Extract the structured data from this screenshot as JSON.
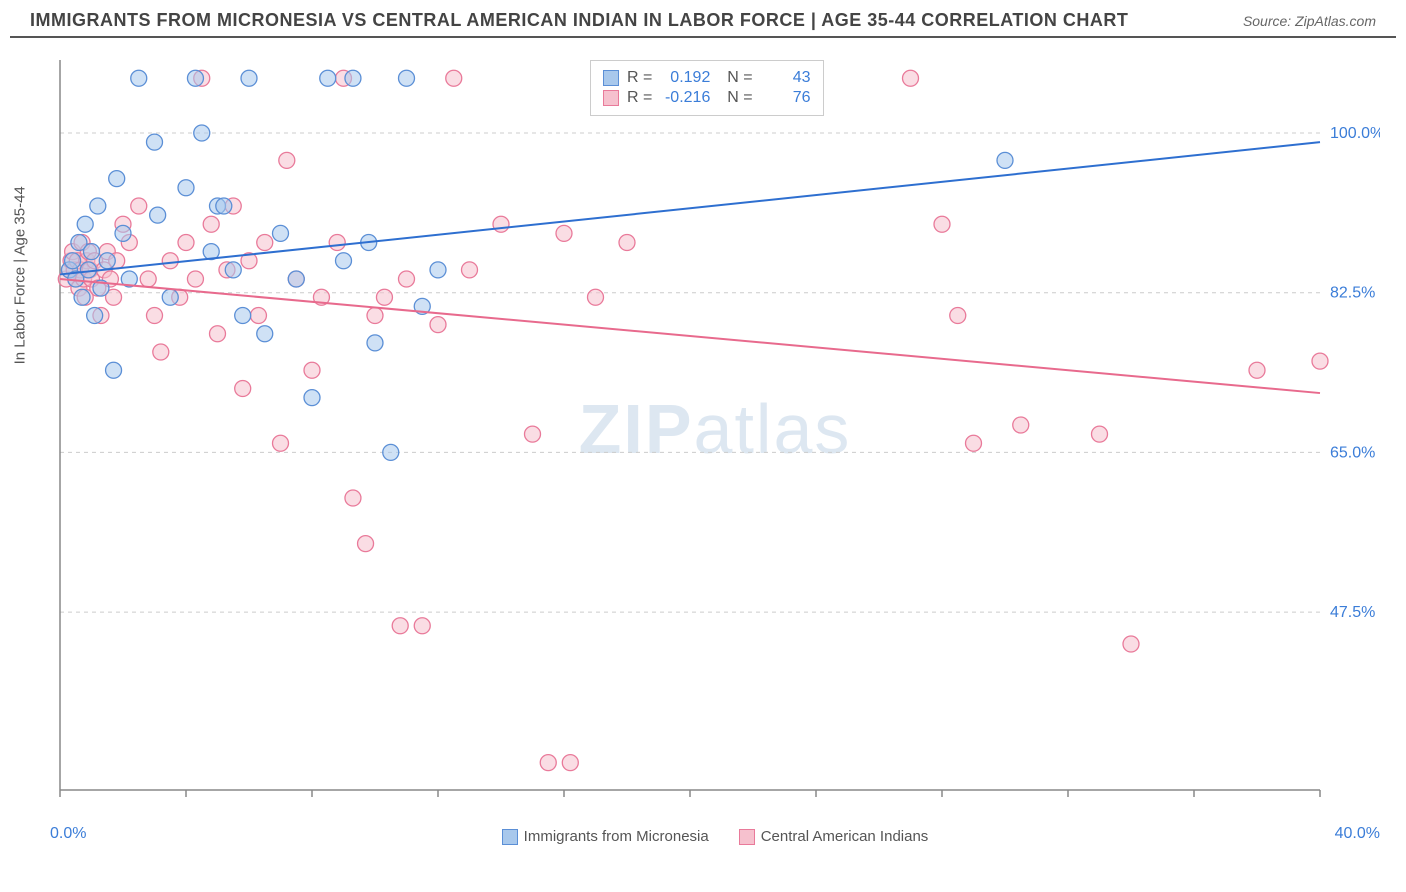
{
  "title": "IMMIGRANTS FROM MICRONESIA VS CENTRAL AMERICAN INDIAN IN LABOR FORCE | AGE 35-44 CORRELATION CHART",
  "source": "Source: ZipAtlas.com",
  "ylabel": "In Labor Force | Age 35-44",
  "watermark_bold": "ZIP",
  "watermark_light": "atlas",
  "xlim": [
    0,
    40
  ],
  "ylim": [
    28,
    108
  ],
  "xticks": [
    0,
    4,
    8,
    12,
    16,
    20,
    24,
    28,
    32,
    36,
    40
  ],
  "yticks": [
    {
      "v": 100.0,
      "label": "100.0%"
    },
    {
      "v": 82.5,
      "label": "82.5%"
    },
    {
      "v": 65.0,
      "label": "65.0%"
    },
    {
      "v": 47.5,
      "label": "47.5%"
    }
  ],
  "xaxis_labels": {
    "left": "0.0%",
    "right": "40.0%"
  },
  "grid_color": "#cccccc",
  "axis_color": "#888888",
  "tick_label_color": "#3b7dd8",
  "background_color": "#ffffff",
  "marker_radius": 8,
  "marker_opacity": 0.55,
  "line_width": 2,
  "series": [
    {
      "name": "Immigrants from Micronesia",
      "color_fill": "#a8c8ec",
      "color_stroke": "#5b8fd6",
      "line_color": "#2e6fd0",
      "R": "0.192",
      "N": "43",
      "trend": {
        "x1": 0,
        "y1": 84.5,
        "x2": 40,
        "y2": 99.0
      },
      "points": [
        [
          0.3,
          85
        ],
        [
          0.4,
          86
        ],
        [
          0.5,
          84
        ],
        [
          0.6,
          88
        ],
        [
          0.7,
          82
        ],
        [
          0.8,
          90
        ],
        [
          0.9,
          85
        ],
        [
          1.0,
          87
        ],
        [
          1.1,
          80
        ],
        [
          1.2,
          92
        ],
        [
          1.3,
          83
        ],
        [
          1.5,
          86
        ],
        [
          1.7,
          74
        ],
        [
          1.8,
          95
        ],
        [
          2.0,
          89
        ],
        [
          2.2,
          84
        ],
        [
          2.5,
          106
        ],
        [
          3.0,
          99
        ],
        [
          3.1,
          91
        ],
        [
          3.5,
          82
        ],
        [
          4.0,
          94
        ],
        [
          4.3,
          106
        ],
        [
          4.5,
          100
        ],
        [
          4.8,
          87
        ],
        [
          5.0,
          92
        ],
        [
          5.2,
          92
        ],
        [
          5.5,
          85
        ],
        [
          5.8,
          80
        ],
        [
          6.0,
          106
        ],
        [
          6.5,
          78
        ],
        [
          7.0,
          89
        ],
        [
          7.5,
          84
        ],
        [
          8.0,
          71
        ],
        [
          8.5,
          106
        ],
        [
          9.0,
          86
        ],
        [
          9.3,
          106
        ],
        [
          9.8,
          88
        ],
        [
          10.0,
          77
        ],
        [
          10.5,
          65
        ],
        [
          11.0,
          106
        ],
        [
          11.5,
          81
        ],
        [
          12.0,
          85
        ],
        [
          30.0,
          97
        ]
      ]
    },
    {
      "name": "Central American Indians",
      "color_fill": "#f6c1ce",
      "color_stroke": "#e97a9a",
      "line_color": "#e86a8d",
      "R": "-0.216",
      "N": "76",
      "trend": {
        "x1": 0,
        "y1": 84.0,
        "x2": 40,
        "y2": 71.5
      },
      "points": [
        [
          0.2,
          84
        ],
        [
          0.3,
          85
        ],
        [
          0.35,
          86
        ],
        [
          0.4,
          87
        ],
        [
          0.45,
          85
        ],
        [
          0.5,
          84
        ],
        [
          0.55,
          86
        ],
        [
          0.6,
          83
        ],
        [
          0.65,
          85
        ],
        [
          0.7,
          88
        ],
        [
          0.75,
          84
        ],
        [
          0.8,
          82
        ],
        [
          0.85,
          86
        ],
        [
          0.9,
          87
        ],
        [
          0.95,
          85
        ],
        [
          1.0,
          84
        ],
        [
          1.1,
          86
        ],
        [
          1.2,
          83
        ],
        [
          1.3,
          80
        ],
        [
          1.4,
          85
        ],
        [
          1.5,
          87
        ],
        [
          1.6,
          84
        ],
        [
          1.7,
          82
        ],
        [
          1.8,
          86
        ],
        [
          2.0,
          90
        ],
        [
          2.2,
          88
        ],
        [
          2.5,
          92
        ],
        [
          2.8,
          84
        ],
        [
          3.0,
          80
        ],
        [
          3.2,
          76
        ],
        [
          3.5,
          86
        ],
        [
          3.8,
          82
        ],
        [
          4.0,
          88
        ],
        [
          4.3,
          84
        ],
        [
          4.5,
          106
        ],
        [
          4.8,
          90
        ],
        [
          5.0,
          78
        ],
        [
          5.3,
          85
        ],
        [
          5.5,
          92
        ],
        [
          5.8,
          72
        ],
        [
          6.0,
          86
        ],
        [
          6.3,
          80
        ],
        [
          6.5,
          88
        ],
        [
          7.0,
          66
        ],
        [
          7.2,
          97
        ],
        [
          7.5,
          84
        ],
        [
          8.0,
          74
        ],
        [
          8.3,
          82
        ],
        [
          8.8,
          88
        ],
        [
          9.0,
          106
        ],
        [
          9.3,
          60
        ],
        [
          9.7,
          55
        ],
        [
          10.0,
          80
        ],
        [
          10.3,
          82
        ],
        [
          10.8,
          46
        ],
        [
          11.0,
          84
        ],
        [
          11.5,
          46
        ],
        [
          12.0,
          79
        ],
        [
          12.5,
          106
        ],
        [
          13.0,
          85
        ],
        [
          14.0,
          90
        ],
        [
          15.0,
          67
        ],
        [
          15.5,
          31
        ],
        [
          16.0,
          89
        ],
        [
          16.2,
          31
        ],
        [
          17.0,
          82
        ],
        [
          18.0,
          88
        ],
        [
          27.0,
          106
        ],
        [
          28.0,
          90
        ],
        [
          28.5,
          80
        ],
        [
          29.0,
          66
        ],
        [
          30.5,
          68
        ],
        [
          33.0,
          67
        ],
        [
          34.0,
          44
        ],
        [
          38.0,
          74
        ],
        [
          40.0,
          75
        ]
      ]
    }
  ],
  "legend_bottom": [
    {
      "label": "Immigrants from Micronesia",
      "fill": "#a8c8ec",
      "stroke": "#5b8fd6"
    },
    {
      "label": "Central American Indians",
      "fill": "#f6c1ce",
      "stroke": "#e97a9a"
    }
  ]
}
